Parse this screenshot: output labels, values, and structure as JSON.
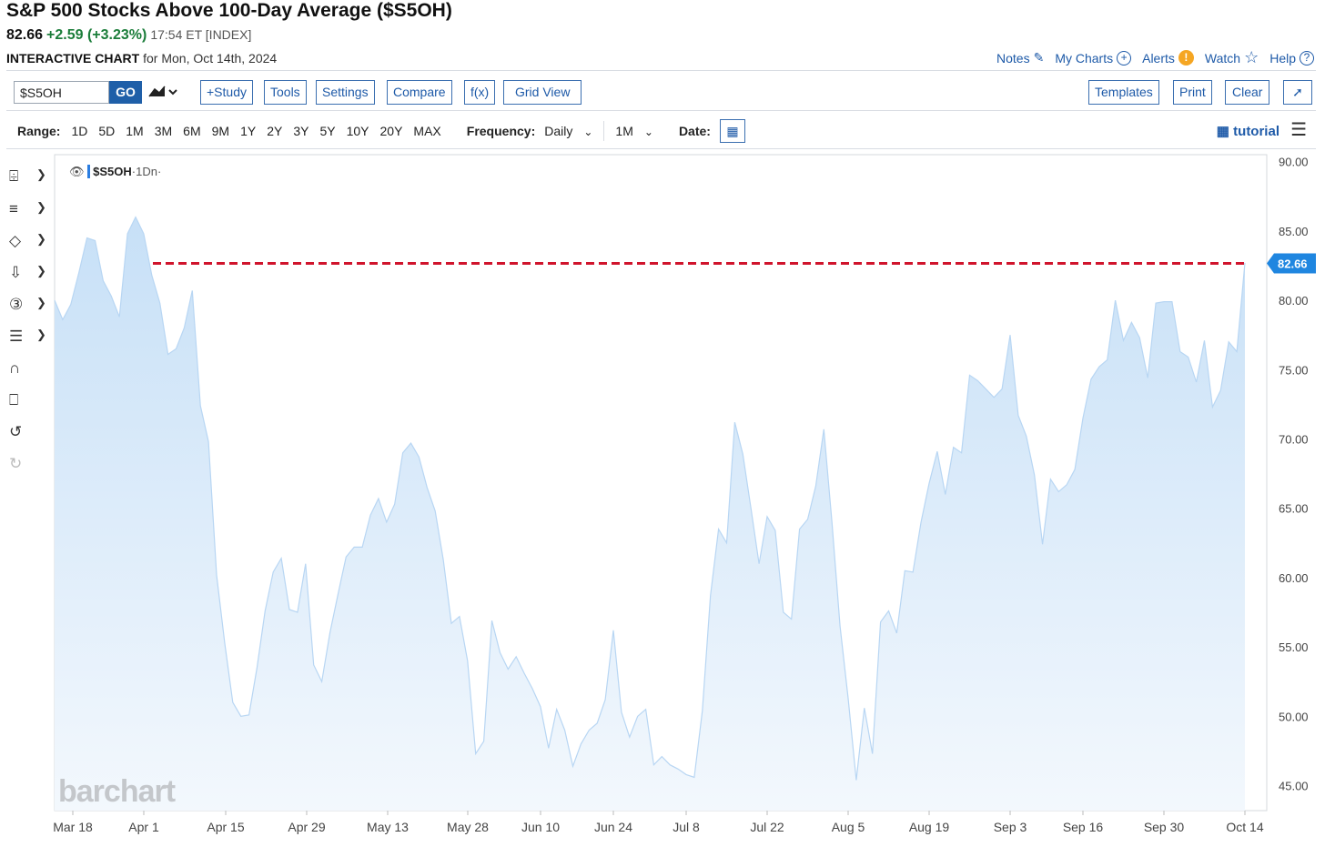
{
  "header": {
    "title": "S&P 500 Stocks Above 100-Day Average ($S5OH)",
    "last": "82.66",
    "change": "+2.59 (+3.23%)",
    "time": "17:54 ET [INDEX]",
    "subtitle_bold": "INTERACTIVE CHART",
    "subtitle_rest": " for Mon, Oct 14th, 2024"
  },
  "toplinks": {
    "notes": "Notes",
    "my_charts": "My Charts",
    "alerts": "Alerts",
    "watch": "Watch",
    "help": "Help"
  },
  "toolbar": {
    "symbol": "$S5OH",
    "go": "GO",
    "study": "+Study",
    "tools": "Tools",
    "settings": "Settings",
    "compare": "Compare",
    "fx": "f(x)",
    "grid_view": "Grid View",
    "templates": "Templates",
    "print": "Print",
    "clear": "Clear"
  },
  "rangebar": {
    "range_label": "Range:",
    "ranges": [
      "1D",
      "5D",
      "1M",
      "3M",
      "6M",
      "9M",
      "1Y",
      "2Y",
      "3Y",
      "5Y",
      "10Y",
      "20Y",
      "MAX"
    ],
    "frequency_label": "Frequency:",
    "frequency": "Daily",
    "interval": "1M",
    "date_label": "Date:",
    "tutorial": "tutorial"
  },
  "legend": {
    "symbol": "$S5OH",
    "period": "·1Dn·"
  },
  "watermark": "barchart",
  "colors": {
    "accent": "#1e5aa8",
    "area_top": "#c7e0f7",
    "area_line": "#b8d6f3",
    "ref_line": "#d0142c",
    "price_badge": "#1f86e0",
    "positive": "#1b7d3a"
  },
  "chart_data": {
    "type": "area",
    "x_tick_labels": [
      "Mar 18",
      "Apr 1",
      "Apr 15",
      "Apr 29",
      "May 13",
      "May 28",
      "Jun 10",
      "Jun 24",
      "Jul 8",
      "Jul 22",
      "Aug 5",
      "Aug 19",
      "Sep 3",
      "Sep 16",
      "Sep 30",
      "Oct 14"
    ],
    "y_ticks": [
      "90.00",
      "85.00",
      "80.00",
      "75.00",
      "70.00",
      "65.00",
      "60.00",
      "55.00",
      "50.00",
      "45.00"
    ],
    "ylim": [
      43.2,
      90.5
    ],
    "last_value_label": "82.66",
    "reference_line": 82.66,
    "values": [
      80.0,
      78.6,
      79.7,
      82.0,
      84.5,
      84.3,
      81.4,
      80.3,
      78.8,
      84.8,
      86.0,
      84.8,
      81.8,
      79.8,
      76.1,
      76.5,
      78.0,
      80.7,
      72.4,
      69.8,
      60.2,
      55.3,
      51.0,
      50.0,
      50.1,
      53.5,
      57.6,
      60.4,
      61.4,
      57.7,
      57.5,
      61.0,
      53.7,
      52.5,
      56.0,
      58.8,
      61.5,
      62.2,
      62.2,
      64.5,
      65.7,
      64.0,
      65.3,
      69.0,
      69.7,
      68.7,
      66.5,
      64.8,
      61.3,
      56.7,
      57.2,
      54.0,
      47.3,
      48.2,
      56.9,
      54.6,
      53.4,
      54.3,
      53.1,
      52.0,
      50.7,
      47.7,
      50.5,
      49.0,
      46.4,
      48.0,
      49.0,
      49.5,
      51.2,
      56.2,
      50.3,
      48.5,
      50.0,
      50.5,
      46.5,
      47.1,
      46.5,
      46.2,
      45.8,
      45.6,
      50.4,
      58.7,
      63.5,
      62.5,
      71.2,
      68.9,
      65.0,
      61.0,
      64.4,
      63.4,
      57.5,
      57.0,
      63.5,
      64.2,
      66.6,
      70.7,
      64.0,
      56.5,
      51.3,
      45.4,
      50.6,
      47.3,
      56.8,
      57.6,
      56.0,
      60.5,
      60.4,
      64.0,
      66.8,
      69.1,
      66.0,
      69.4,
      69.0,
      74.6,
      74.2,
      73.6,
      73.0,
      73.6,
      77.5,
      71.7,
      70.2,
      67.4,
      62.4,
      67.1,
      66.2,
      66.7,
      67.8,
      71.5,
      74.3,
      75.2,
      75.7,
      80.0,
      77.1,
      78.4,
      77.3,
      74.4,
      79.8,
      79.9,
      79.9,
      76.3,
      75.9,
      74.1,
      77.1,
      72.3,
      73.5,
      77.0,
      76.3,
      82.7
    ]
  }
}
